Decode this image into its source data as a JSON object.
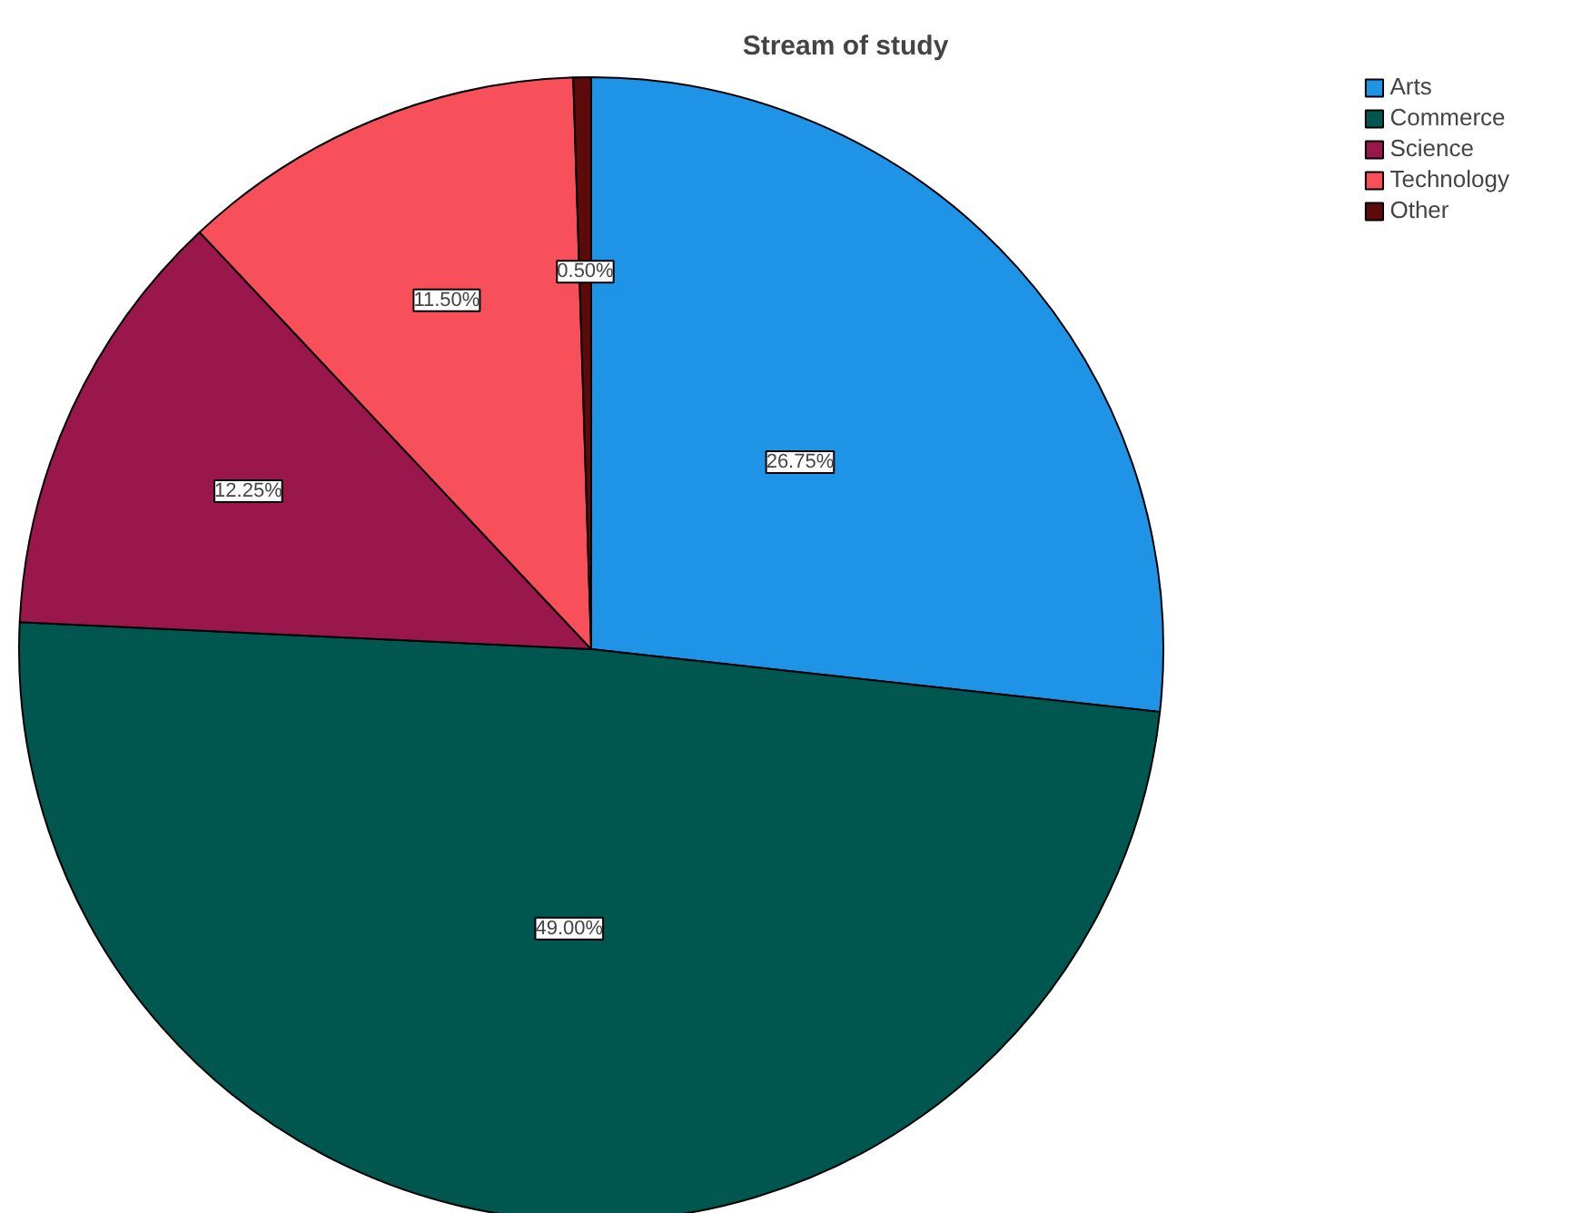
{
  "chart_data": {
    "type": "pie",
    "title": "Stream of study",
    "categories": [
      "Arts",
      "Commerce",
      "Science",
      "Technology",
      "Other"
    ],
    "values": [
      26.75,
      49.0,
      12.25,
      11.5,
      0.5
    ],
    "colors": [
      "#1f93e6",
      "#00574f",
      "#99174b",
      "#f7505a",
      "#5c0a0a"
    ],
    "value_labels": [
      "26.75%",
      "49.00%",
      "12.25%",
      "11.50%",
      "0.50%"
    ],
    "legend": "top right"
  }
}
